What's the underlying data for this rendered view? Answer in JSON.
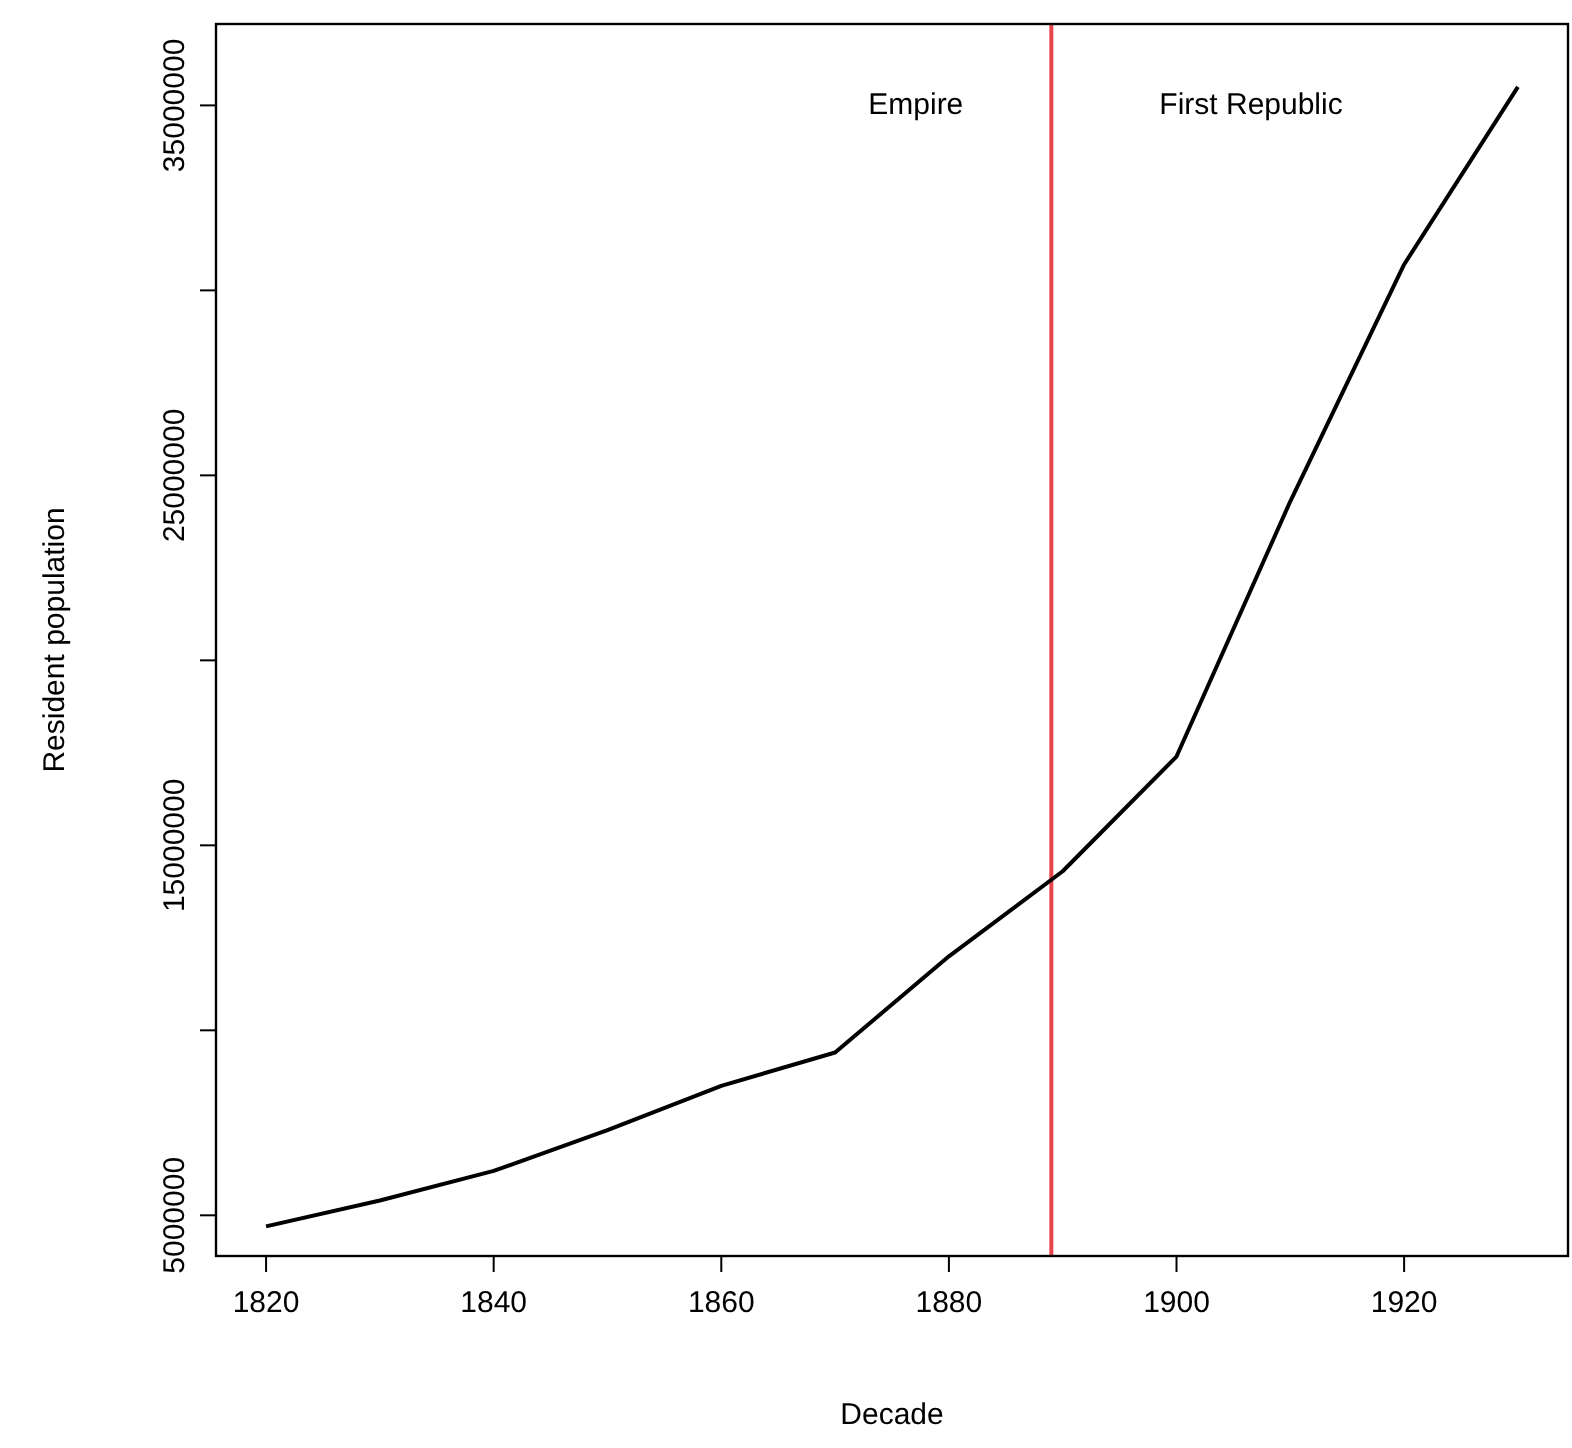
{
  "chart_data": {
    "type": "line",
    "xlabel": "Decade",
    "ylabel": "Resident population",
    "x": [
      1820,
      1830,
      1840,
      1850,
      1860,
      1870,
      1880,
      1890,
      1900,
      1910,
      1920,
      1930
    ],
    "series": [
      {
        "color": "#000000",
        "values": [
          4700000,
          5400000,
          6200000,
          7300000,
          8500000,
          9400000,
          12000000,
          14300000,
          17400000,
          24300000,
          30700000,
          35500000
        ]
      }
    ],
    "xlim": [
      1815.6,
      1934.4
    ],
    "xticks": [
      1820,
      1840,
      1860,
      1880,
      1900,
      1920
    ],
    "ylim": [
      3900000,
      37200000
    ],
    "yticks": [
      5000000,
      {
        "value": 10000000,
        "label": null
      },
      15000000,
      {
        "value": 20000000,
        "label": null
      },
      25000000,
      {
        "value": 30000000,
        "label": null
      },
      35000000
    ],
    "ref_lines": [
      {
        "axis": "x",
        "value": 1889,
        "color": "#e8454a"
      }
    ],
    "annotations": [
      "Empire",
      "First Republic"
    ],
    "grid": false,
    "marker": "none",
    "line_style": "solid"
  }
}
